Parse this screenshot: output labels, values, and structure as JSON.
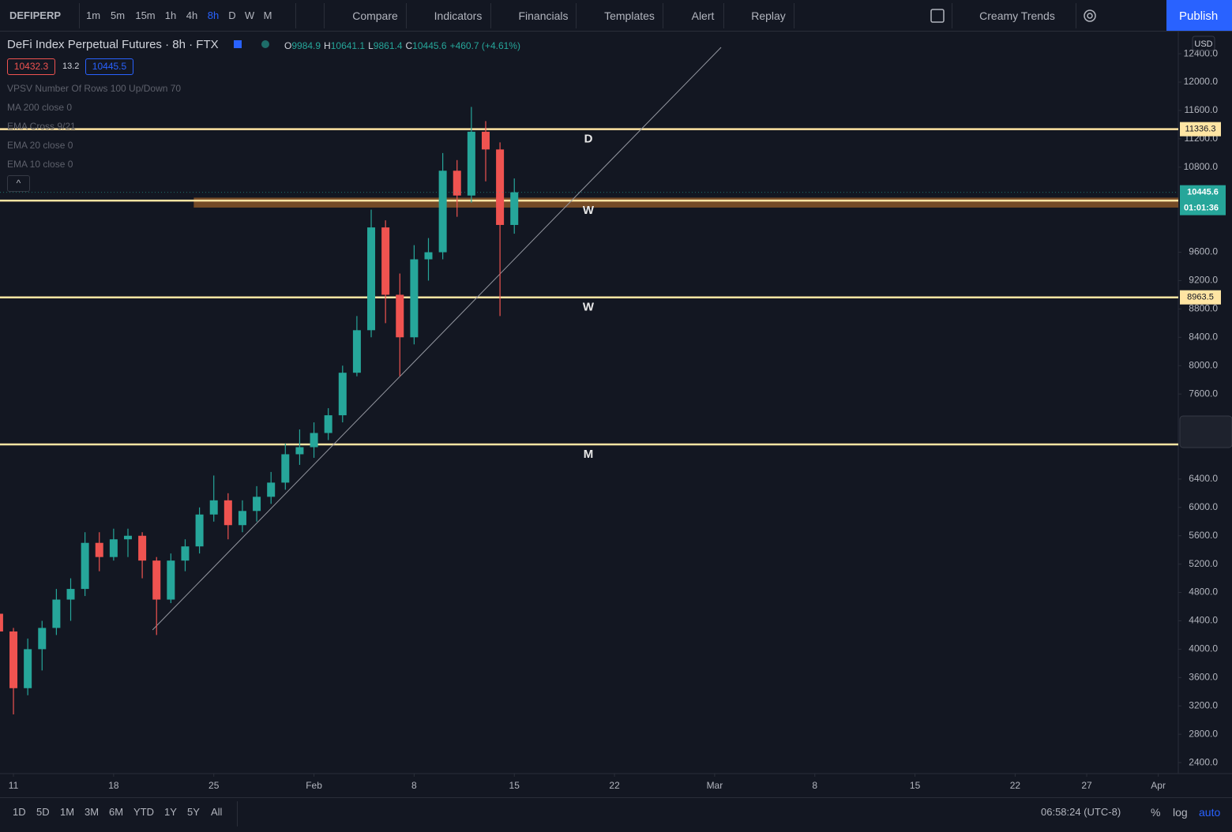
{
  "toolbar": {
    "symbol": "DEFIPERP",
    "intervals": [
      "1m",
      "5m",
      "15m",
      "1h",
      "4h",
      "8h",
      "D",
      "W",
      "M"
    ],
    "active_interval": "8h",
    "buttons": [
      "Compare",
      "Indicators",
      "Financials",
      "Templates",
      "Alert",
      "Replay"
    ],
    "layout_name": "Creamy Trends",
    "publish": "Publish"
  },
  "legend": {
    "title": "DeFi Index Perpetual Futures · 8h · FTX",
    "ohlc": [
      {
        "key": "O",
        "value": "9984.9"
      },
      {
        "key": "H",
        "value": "10641.1"
      },
      {
        "key": "L",
        "value": "9861.4"
      },
      {
        "key": "C",
        "value": "10445.6"
      }
    ],
    "change": "+460.7 (+4.61%)",
    "bid": "10432.3",
    "spread": "13.2",
    "ask": "10445.5",
    "indicators": [
      "VPSV Number Of Rows 100 Up/Down 70",
      "MA 200 close 0",
      "EMA Cross 9/21",
      "EMA 20 close 0",
      "EMA 10 close 0"
    ]
  },
  "chart_data": {
    "type": "candlestick",
    "currency": "USD",
    "up_color": "#26a69a",
    "down_color": "#ef5350",
    "x": [
      -1,
      0,
      1,
      2,
      3,
      4,
      5,
      6,
      7,
      8,
      9,
      10,
      11,
      12,
      13,
      14,
      15,
      16,
      17,
      18,
      19,
      20,
      21,
      22,
      23,
      24,
      25,
      26,
      27,
      28,
      29,
      30,
      31,
      32,
      33,
      34,
      35
    ],
    "open": [
      4500,
      4250,
      3450,
      4000,
      4300,
      4700,
      4850,
      5500,
      5300,
      5550,
      5600,
      5250,
      4700,
      5250,
      5450,
      5900,
      6100,
      5750,
      5950,
      6150,
      6350,
      6750,
      6850,
      7050,
      7300,
      7900,
      8500,
      9950,
      9000,
      8400,
      9500,
      9600,
      10750,
      10400,
      11300,
      11050,
      9984.9
    ],
    "high": [
      4650,
      4300,
      4150,
      4400,
      4850,
      5000,
      5650,
      5650,
      5700,
      5700,
      5650,
      5300,
      5350,
      5550,
      6000,
      6450,
      6200,
      6100,
      6300,
      6500,
      6900,
      7100,
      7200,
      7400,
      8000,
      8700,
      10200,
      10050,
      9300,
      9700,
      9800,
      11000,
      10900,
      11650,
      11450,
      11150,
      10641.1
    ],
    "low": [
      4150,
      3080,
      3350,
      3700,
      4200,
      4400,
      4750,
      5100,
      5250,
      5300,
      5000,
      4200,
      4650,
      5100,
      5350,
      5800,
      5550,
      5650,
      5800,
      6050,
      6250,
      6600,
      6700,
      6950,
      7200,
      7850,
      8400,
      8600,
      7850,
      8300,
      9200,
      9500,
      10100,
      10300,
      10600,
      8700,
      9861.4
    ],
    "close": [
      4250,
      3450,
      4000,
      4300,
      4700,
      4850,
      5500,
      5300,
      5550,
      5600,
      5250,
      4700,
      5250,
      5450,
      5900,
      6100,
      5750,
      5950,
      6150,
      6350,
      6750,
      6850,
      7050,
      7300,
      7900,
      8500,
      9950,
      9000,
      8400,
      9500,
      9600,
      10750,
      10400,
      11300,
      11050,
      9985,
      10445.6
    ],
    "countdown": "01:01:36",
    "xlim": [
      -0.94,
      81.4
    ],
    "xticks": [
      {
        "value": 0,
        "label": "11"
      },
      {
        "value": 7,
        "label": "18"
      },
      {
        "value": 14,
        "label": "25"
      },
      {
        "value": 21,
        "label": "Feb"
      },
      {
        "value": 28,
        "label": "8"
      },
      {
        "value": 35,
        "label": "15"
      },
      {
        "value": 42,
        "label": "22"
      },
      {
        "value": 49,
        "label": "Mar"
      },
      {
        "value": 56,
        "label": "8"
      },
      {
        "value": 63,
        "label": "15"
      },
      {
        "value": 70,
        "label": "22"
      },
      {
        "value": 75,
        "label": "27"
      },
      {
        "value": 80,
        "label": "Apr"
      }
    ],
    "ylim": [
      2245,
      12713
    ],
    "yticks": [
      {
        "value": 2400,
        "label": "2400.0"
      },
      {
        "value": 2800,
        "label": "2800.0"
      },
      {
        "value": 3200,
        "label": "3200.0"
      },
      {
        "value": 3600,
        "label": "3600.0"
      },
      {
        "value": 4000,
        "label": "4000.0"
      },
      {
        "value": 4400,
        "label": "4400.0"
      },
      {
        "value": 4800,
        "label": "4800.0"
      },
      {
        "value": 5200,
        "label": "5200.0"
      },
      {
        "value": 5600,
        "label": "5600.0"
      },
      {
        "value": 6000,
        "label": "6000.0"
      },
      {
        "value": 6400,
        "label": "6400.0"
      },
      {
        "value": 7600,
        "label": "7600.0"
      },
      {
        "value": 8000,
        "label": "8000.0"
      },
      {
        "value": 8400,
        "label": "8400.0"
      },
      {
        "value": 8800,
        "label": "8800.0"
      },
      {
        "value": 9200,
        "label": "9200.0"
      },
      {
        "value": 9600,
        "label": "9600.0"
      },
      {
        "value": 10800,
        "label": "10800.0"
      },
      {
        "value": 11200,
        "label": "11200.0"
      },
      {
        "value": 11600,
        "label": "11600.0"
      },
      {
        "value": 12000,
        "label": "12000.0"
      },
      {
        "value": 12400,
        "label": "12400.0"
      }
    ],
    "levels": [
      {
        "value": 11336.3,
        "label": "D"
      },
      {
        "value": 10329.1,
        "label": "W"
      },
      {
        "value": 8963.5,
        "label": "W"
      },
      {
        "value": 6889,
        "label": "M"
      }
    ],
    "zone": {
      "x_start": 12.6,
      "low": 10230,
      "high": 10370
    },
    "trendline": {
      "x": [
        9.72,
        49.45
      ],
      "y": [
        4272,
        12490
      ]
    }
  },
  "bottom": {
    "ranges": [
      "1D",
      "5D",
      "1M",
      "3M",
      "6M",
      "YTD",
      "1Y",
      "5Y",
      "All"
    ],
    "clock": "06:58:24 (UTC-8)",
    "percent": "%",
    "log": "log",
    "auto": "auto"
  }
}
